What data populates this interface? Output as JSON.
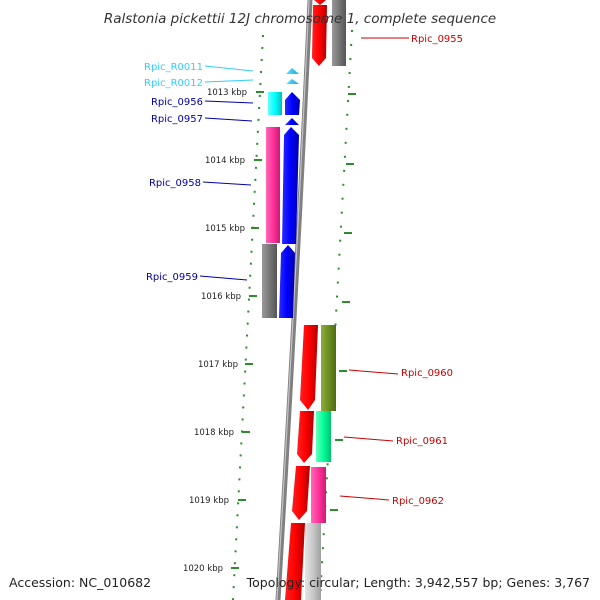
{
  "title": "Ralstonia pickettii 12J chromosome 1, complete sequence",
  "footer": {
    "accession": "Accession: NC_010682",
    "summary": "Topology: circular; Length: 3,942,557 bp; Genes: 3,767"
  },
  "ticks": [
    "1013 kbp",
    "1014 kbp",
    "1015 kbp",
    "1016 kbp",
    "1017 kbp",
    "1018 kbp",
    "1019 kbp",
    "1020 kbp"
  ],
  "genes": [
    {
      "label": "Rpic_0955",
      "color": "#ff0000",
      "label_color": "#cc0000",
      "strand": "reverse"
    },
    {
      "label": "Rpic_R0011",
      "color": "#33ccff",
      "label_color": "#33ccff",
      "strand": "forward"
    },
    {
      "label": "Rpic_R0012",
      "color": "#33ccff",
      "label_color": "#33ccff",
      "strand": "forward"
    },
    {
      "label": "Rpic_0956",
      "color": "#0000ff",
      "label_color": "#0000aa",
      "strand": "forward"
    },
    {
      "label": "Rpic_0957",
      "color": "#0000ff",
      "label_color": "#0000aa",
      "strand": "forward"
    },
    {
      "label": "Rpic_0958",
      "color": "#0000ff",
      "label_color": "#0000aa",
      "strand": "forward"
    },
    {
      "label": "Rpic_0959",
      "color": "#0000ff",
      "label_color": "#0000aa",
      "strand": "forward"
    },
    {
      "label": "Rpic_0960",
      "color": "#ff0000",
      "label_color": "#cc0000",
      "strand": "reverse"
    },
    {
      "label": "Rpic_0961",
      "color": "#ff0000",
      "label_color": "#cc0000",
      "strand": "reverse"
    },
    {
      "label": "Rpic_0962",
      "color": "#ff0000",
      "label_color": "#cc0000",
      "strand": "reverse"
    }
  ],
  "colors": {
    "backbone": "#808080",
    "tick": "#2e8b2e",
    "cog_gray": "#777777",
    "cog_magenta": "#ff3399",
    "cog_cyan": "#00ffff",
    "cog_olive": "#6b8e23",
    "cog_mint": "#00ff99",
    "cog_lightgray": "#c8c8c8"
  }
}
